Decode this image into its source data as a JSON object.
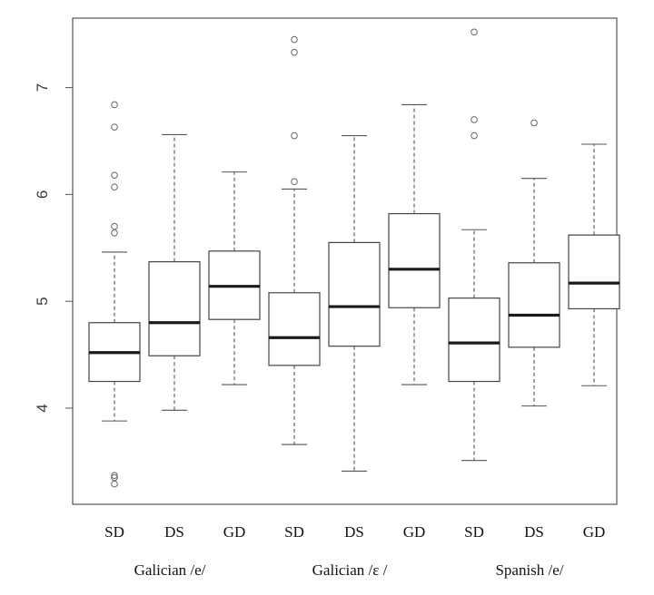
{
  "chart_data": {
    "type": "boxplot",
    "title": "",
    "xlabel": "",
    "ylabel": "",
    "ylim": [
      3.1,
      7.65
    ],
    "yticks": [
      4,
      5,
      6,
      7
    ],
    "ytick_labels": [
      "4",
      "5",
      "6",
      "7"
    ],
    "grid": false,
    "legend": "none",
    "colors": {
      "box": "#444444",
      "median": "#1a1a1a",
      "whisker": "#555555",
      "outlier": "#666666",
      "frame": "#555555"
    },
    "groups": [
      {
        "label": "Galician /e/",
        "categories": [
          "SD",
          "DS",
          "GD"
        ]
      },
      {
        "label": "Galician /ɛ /",
        "categories": [
          "SD",
          "DS",
          "GD"
        ]
      },
      {
        "label": "Spanish /e/",
        "categories": [
          "SD",
          "DS",
          "GD"
        ]
      }
    ],
    "boxes": [
      {
        "category": "SD",
        "group": "Galician /e/",
        "whisker_low": 3.88,
        "q1": 4.25,
        "median": 4.52,
        "q3": 4.8,
        "whisker_high": 5.46,
        "outliers": [
          3.35,
          3.37,
          3.29,
          5.64,
          5.7,
          6.07,
          6.18,
          6.63,
          6.84
        ]
      },
      {
        "category": "DS",
        "group": "Galician /e/",
        "whisker_low": 3.98,
        "q1": 4.49,
        "median": 4.8,
        "q3": 5.37,
        "whisker_high": 6.56,
        "outliers": []
      },
      {
        "category": "GD",
        "group": "Galician /e/",
        "whisker_low": 4.22,
        "q1": 4.83,
        "median": 5.14,
        "q3": 5.47,
        "whisker_high": 6.21,
        "outliers": []
      },
      {
        "category": "SD",
        "group": "Galician /ɛ /",
        "whisker_low": 3.66,
        "q1": 4.4,
        "median": 4.66,
        "q3": 5.08,
        "whisker_high": 6.05,
        "outliers": [
          6.12,
          6.55,
          7.33,
          7.45
        ]
      },
      {
        "category": "DS",
        "group": "Galician /ɛ /",
        "whisker_low": 3.41,
        "q1": 4.58,
        "median": 4.95,
        "q3": 5.55,
        "whisker_high": 6.55,
        "outliers": []
      },
      {
        "category": "GD",
        "group": "Galician /ɛ /",
        "whisker_low": 4.22,
        "q1": 4.94,
        "median": 5.3,
        "q3": 5.82,
        "whisker_high": 6.84,
        "outliers": []
      },
      {
        "category": "SD",
        "group": "Spanish /e/",
        "whisker_low": 3.51,
        "q1": 4.25,
        "median": 4.61,
        "q3": 5.03,
        "whisker_high": 5.67,
        "outliers": [
          6.55,
          6.7,
          7.52
        ]
      },
      {
        "category": "DS",
        "group": "Spanish /e/",
        "whisker_low": 4.02,
        "q1": 4.57,
        "median": 4.87,
        "q3": 5.36,
        "whisker_high": 6.15,
        "outliers": [
          6.67
        ]
      },
      {
        "category": "GD",
        "group": "Spanish /e/",
        "whisker_low": 4.21,
        "q1": 4.93,
        "median": 5.17,
        "q3": 5.62,
        "whisker_high": 6.47,
        "outliers": []
      }
    ]
  }
}
